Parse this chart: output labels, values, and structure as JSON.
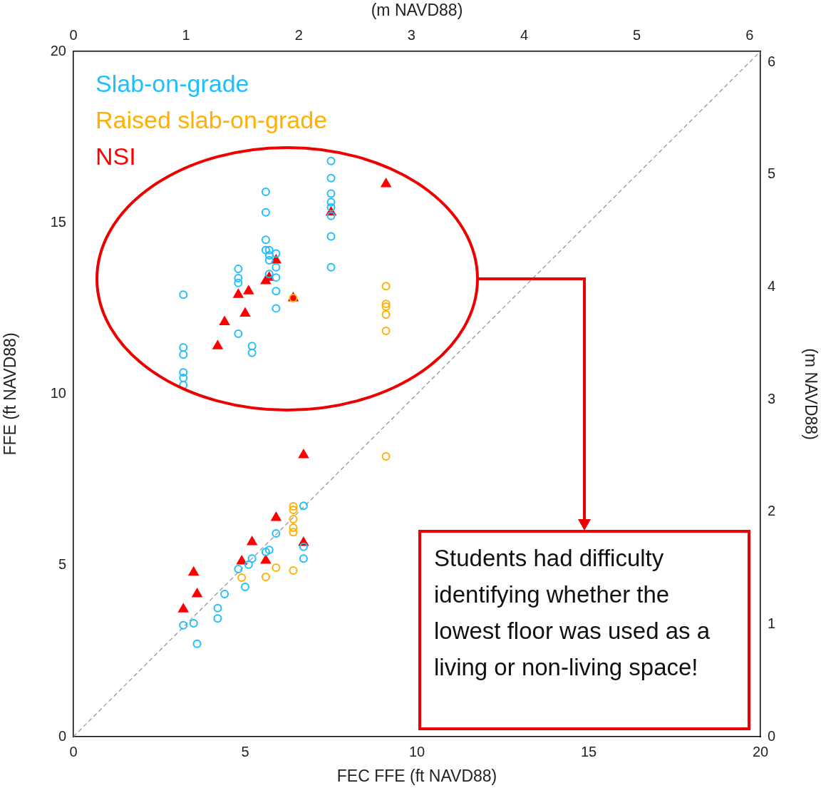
{
  "chart_data": {
    "type": "scatter",
    "xlabel": "FEC FFE (ft NAVD88)",
    "ylabel": "FFE (ft NAVD88)",
    "x2label": "(m NAVD88)",
    "y2label": "(m NAVD88)",
    "xlim": [
      0,
      20
    ],
    "xticks": [
      0,
      5,
      10,
      15,
      20
    ],
    "ylim": [
      0,
      20
    ],
    "yticks": [
      0,
      5,
      10,
      15,
      20
    ],
    "x2lim": [
      0,
      6.096
    ],
    "x2ticks": [
      0,
      1,
      2,
      3,
      4,
      5,
      6
    ],
    "y2lim": [
      0,
      6.096
    ],
    "y2ticks": [
      0,
      1,
      2,
      3,
      4,
      5,
      6
    ],
    "grid": false,
    "legend": "top left",
    "series": [
      {
        "name": "Slab-on-grade",
        "color": "#1fbfff",
        "marker": "circle",
        "x": [
          3.2,
          3.2,
          3.2,
          3.2,
          3.2,
          3.2,
          4.8,
          4.8,
          4.8,
          4.8,
          5.2,
          5.2,
          5.6,
          5.6,
          5.6,
          5.6,
          5.7,
          5.7,
          5.7,
          5.7,
          5.9,
          5.9,
          5.9,
          5.9,
          5.9,
          7.5,
          7.5,
          7.5,
          7.5,
          7.5,
          7.5,
          7.5,
          7.5,
          6.7,
          5.9,
          5.7,
          5.6,
          5.2,
          5.1,
          4.8,
          5.0,
          4.4,
          4.2,
          4.2,
          3.5,
          3.2,
          3.6,
          6.7,
          6.7
        ],
        "values": [
          12.9,
          11.36,
          11.15,
          10.63,
          10.47,
          10.26,
          13.65,
          13.38,
          13.24,
          11.76,
          11.4,
          11.2,
          15.9,
          15.3,
          14.5,
          14.2,
          14.2,
          14.05,
          13.9,
          13.5,
          14.1,
          13.7,
          13.4,
          13.0,
          12.5,
          16.8,
          16.3,
          15.85,
          15.6,
          15.45,
          15.2,
          14.6,
          13.7,
          6.74,
          5.93,
          5.45,
          5.39,
          5.2,
          5.02,
          4.89,
          4.37,
          4.16,
          3.75,
          3.45,
          3.31,
          3.25,
          2.71,
          5.54,
          5.2
        ]
      },
      {
        "name": "Raised slab-on-grade",
        "color": "#ffb000",
        "marker": "circle",
        "x": [
          9.1,
          9.1,
          9.1,
          9.1,
          9.1,
          6.4,
          9.1,
          6.4,
          6.4,
          6.4,
          6.4,
          6.4,
          5.9,
          6.4,
          5.6,
          4.9
        ],
        "values": [
          13.15,
          12.63,
          12.55,
          12.32,
          11.84,
          12.8,
          8.18,
          6.72,
          6.62,
          6.35,
          6.1,
          5.97,
          4.93,
          4.85,
          4.66,
          4.64
        ]
      },
      {
        "name": "NSI",
        "color": "#ff0000",
        "marker": "triangle",
        "x": [
          9.1,
          7.5,
          5.9,
          5.7,
          5.6,
          5.1,
          4.8,
          6.4,
          5.0,
          4.4,
          4.2,
          6.7,
          5.9,
          6.7,
          5.2,
          4.9,
          5.6,
          3.5,
          3.6,
          3.2
        ],
        "values": [
          16.13,
          15.3,
          13.9,
          13.4,
          13.3,
          13.0,
          12.9,
          12.8,
          12.35,
          12.1,
          11.4,
          8.22,
          6.39,
          5.66,
          5.68,
          5.12,
          5.14,
          4.79,
          4.16,
          3.72
        ]
      },
      {
        "type": "line",
        "color": "#999999",
        "line_style": "dashed",
        "marker": "none",
        "x": [
          0,
          20
        ],
        "values": [
          0,
          20
        ]
      }
    ],
    "annotations": [
      "Students had difficulty identifying whether the lowest floor was used as a living or non-living space!"
    ]
  }
}
